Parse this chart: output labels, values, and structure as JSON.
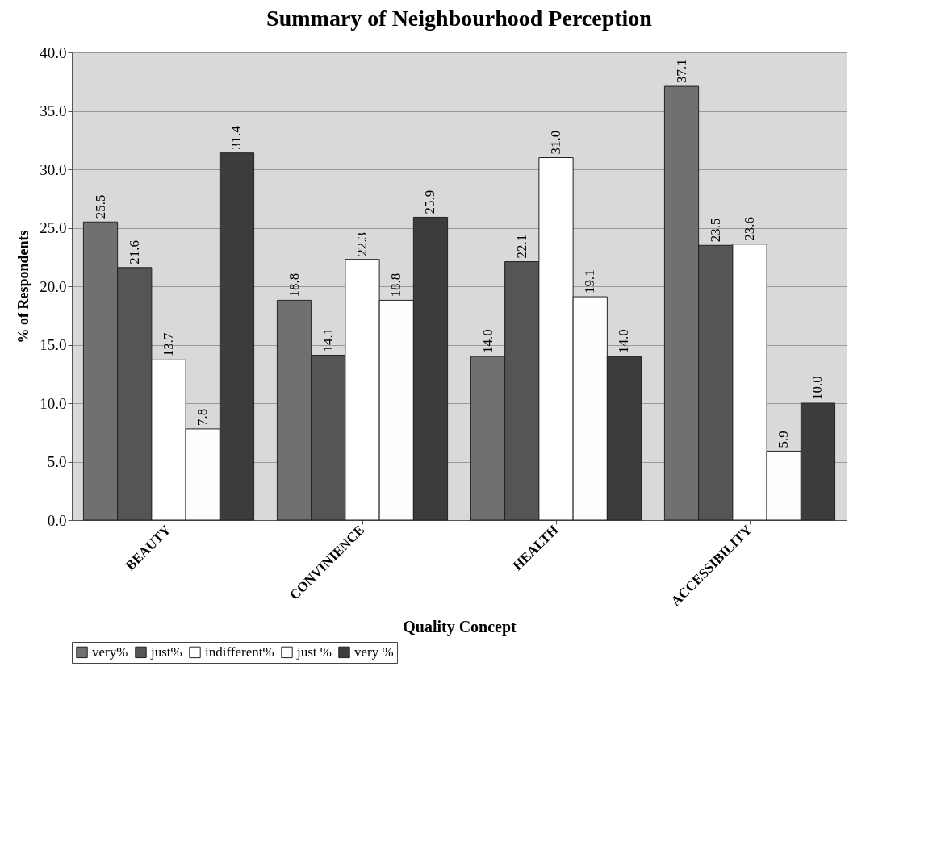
{
  "chart_data": {
    "type": "bar",
    "title": "Summary of Neighbourhood Perception",
    "xlabel": "Quality Concept",
    "ylabel": "% of Respondents",
    "categories": [
      "BEAUTY",
      "CONVINIENCE",
      "HEALTH",
      "ACCESSIBILITY"
    ],
    "series": [
      {
        "name": "very%",
        "color": "#707070",
        "values": [
          25.5,
          18.8,
          14.0,
          37.1
        ],
        "value_labels": [
          "25.5",
          "18.8",
          "14.0",
          "37.1"
        ]
      },
      {
        "name": "just%",
        "color": "#555555",
        "values": [
          21.6,
          14.1,
          22.1,
          23.5
        ],
        "value_labels": [
          "21.6",
          "14.1",
          "22.1",
          "23.5"
        ]
      },
      {
        "name": "indifferent%",
        "color": "#ffffff",
        "values": [
          13.7,
          22.3,
          31.0,
          23.6
        ],
        "value_labels": [
          "13.7",
          "22.3",
          "31.0",
          "23.6"
        ]
      },
      {
        "name": "just %",
        "color": "#fdfdfd",
        "values": [
          7.8,
          18.8,
          19.1,
          5.9
        ],
        "value_labels": [
          "7.8",
          "18.8",
          "19.1",
          "5.9"
        ]
      },
      {
        "name": "very %",
        "color": "#3c3c3c",
        "values": [
          31.4,
          25.9,
          14.0,
          10.0
        ],
        "value_labels": [
          "31.4",
          "25.9",
          "14.0",
          "10.0"
        ]
      }
    ],
    "ylim": [
      0,
      40
    ],
    "yticks": [
      {
        "value": 0,
        "label": "0.0"
      },
      {
        "value": 5,
        "label": "5.0"
      },
      {
        "value": 10,
        "label": "10.0"
      },
      {
        "value": 15,
        "label": "15.0"
      },
      {
        "value": 20,
        "label": "20.0"
      },
      {
        "value": 25,
        "label": "25.0"
      },
      {
        "value": 30,
        "label": "30.0"
      },
      {
        "value": 35,
        "label": "35.0"
      },
      {
        "value": 40,
        "label": "40.0"
      }
    ],
    "grid": "y",
    "legend": "bottom"
  }
}
